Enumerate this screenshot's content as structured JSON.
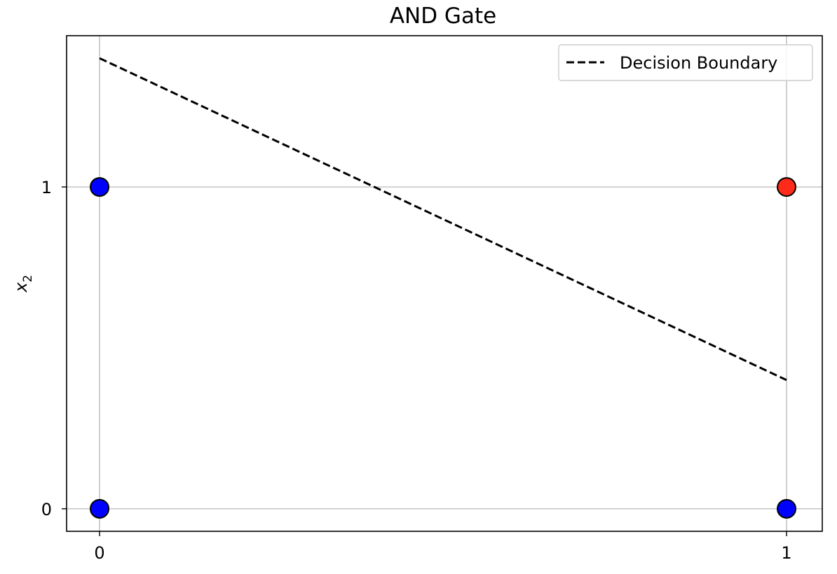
{
  "chart_data": {
    "type": "scatter",
    "title": "AND Gate",
    "xlabel": "",
    "ylabel": "x",
    "ylabel_subscript": "2",
    "x_ticks": [
      0,
      1
    ],
    "y_ticks": [
      0,
      1
    ],
    "x_tick_labels": [
      "0",
      "1"
    ],
    "y_tick_labels": [
      "0",
      "1"
    ],
    "xlim": [
      -0.048,
      1.052
    ],
    "ylim": [
      -0.07,
      1.47
    ],
    "grid": true,
    "legend_position": "top-right",
    "points": [
      {
        "x": 0,
        "y": 0,
        "label": 0,
        "color": "#0000ff"
      },
      {
        "x": 0,
        "y": 1,
        "label": 0,
        "color": "#0000ff"
      },
      {
        "x": 1,
        "y": 0,
        "label": 0,
        "color": "#0000ff"
      },
      {
        "x": 1,
        "y": 1,
        "label": 1,
        "color": "#ff2a1a"
      }
    ],
    "series": [
      {
        "name": "Decision Boundary",
        "type": "line",
        "style": "dashed",
        "color": "#000000",
        "x": [
          0,
          1
        ],
        "y": [
          1.4,
          0.4
        ]
      }
    ]
  }
}
